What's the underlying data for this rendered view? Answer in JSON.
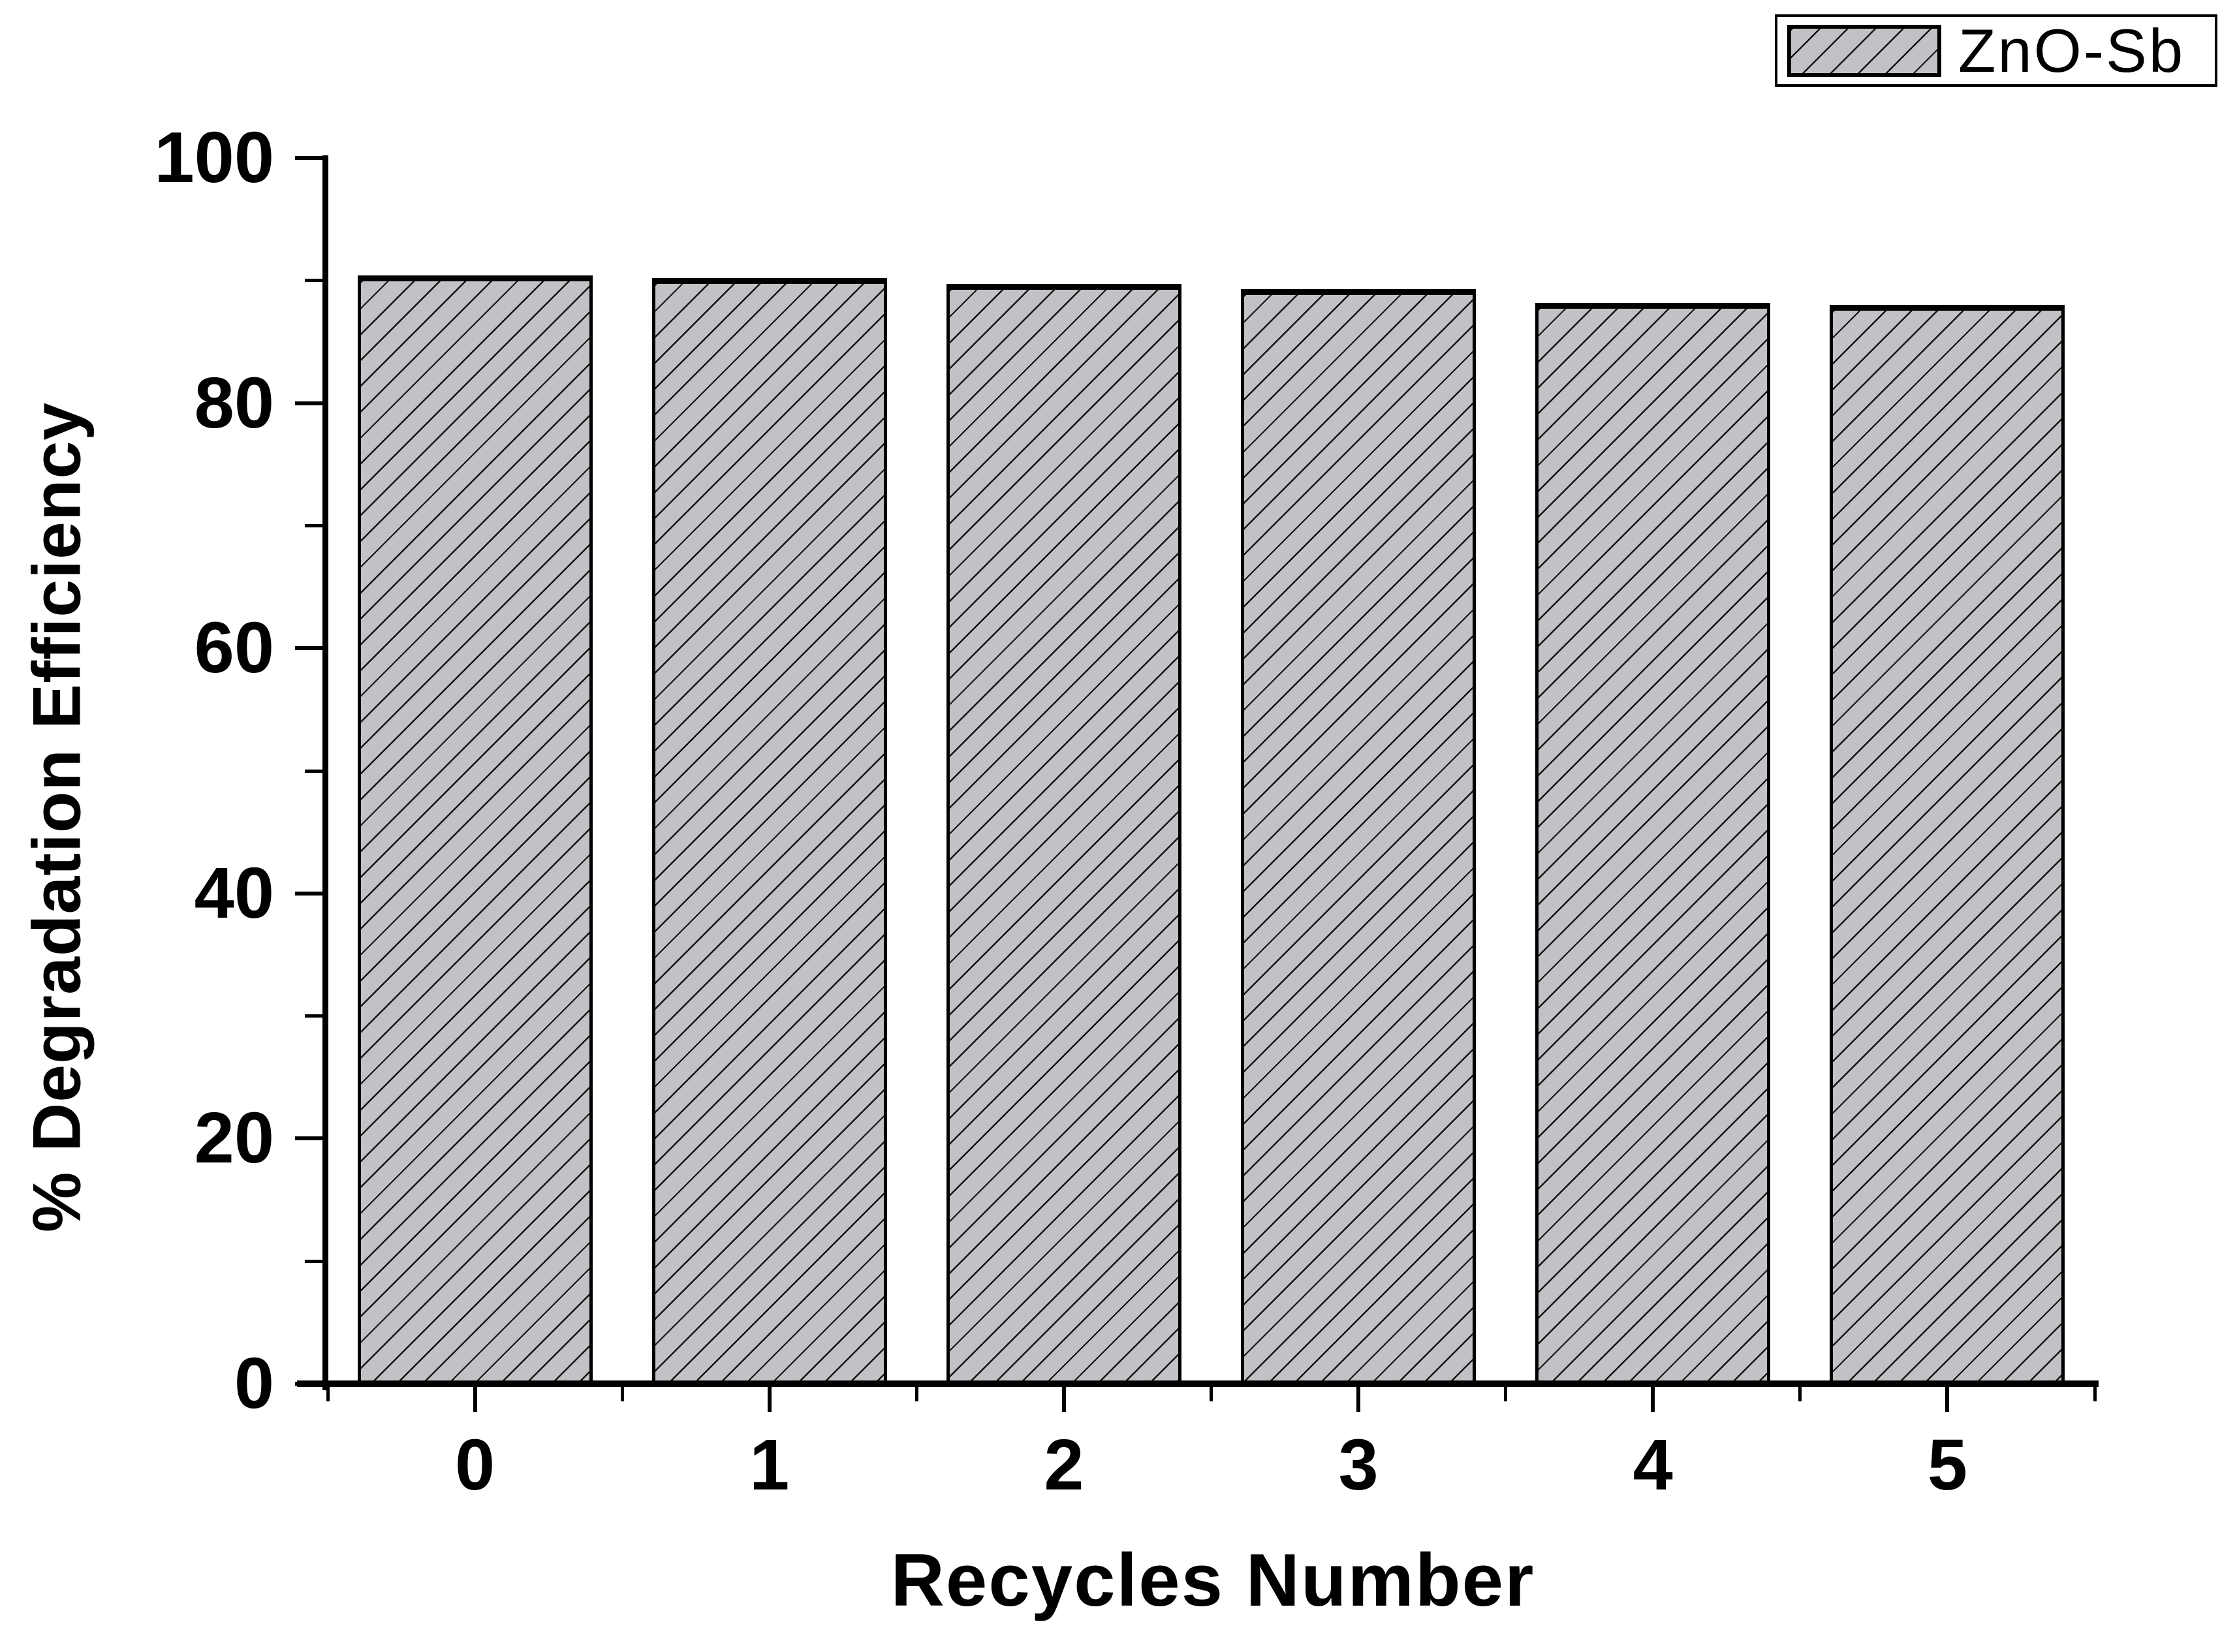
{
  "figure": {
    "background": "#ffffff"
  },
  "chart_data": {
    "type": "bar",
    "title": "",
    "xlabel": "Recycles Number",
    "ylabel": "% Degradation Efficiency",
    "categories": [
      "0",
      "1",
      "2",
      "3",
      "4",
      "5"
    ],
    "series": [
      {
        "name": "ZnO-Sb",
        "values": [
          90.4,
          90.2,
          89.7,
          89.3,
          88.2,
          88.0
        ]
      }
    ],
    "ylim": [
      0,
      100
    ],
    "y_major_ticks": [
      0,
      20,
      40,
      60,
      80,
      100
    ],
    "y_minor_ticks": [
      10,
      30,
      50,
      70,
      90
    ],
    "x_minor_tick_positions": [
      -0.5,
      0.5,
      1.5,
      2.5,
      3.5,
      4.5,
      5.5
    ],
    "grid": false,
    "legend": {
      "position": "top-right",
      "entries": [
        "ZnO-Sb"
      ],
      "swatch_style": "forward-diagonal-hatch"
    },
    "style": {
      "bar_fill": "#c2c2c6",
      "bar_hatch": "forward-diagonal-lines",
      "bar_edge_color": "#000000",
      "axis_color": "#000000",
      "text_color": "#000000"
    }
  }
}
